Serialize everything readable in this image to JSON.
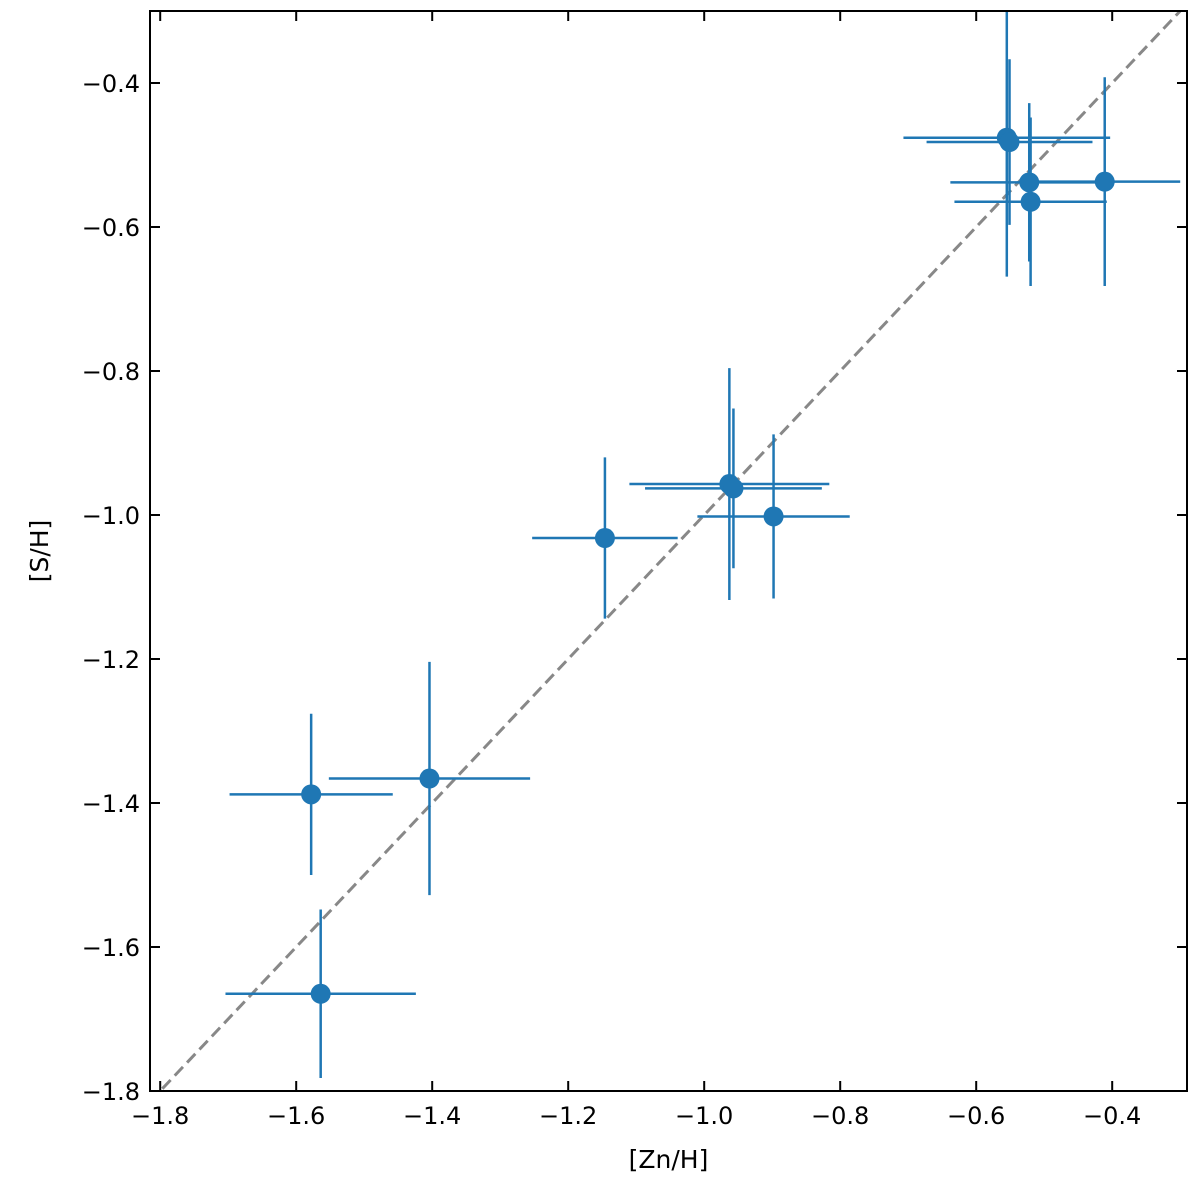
{
  "chart_data": {
    "type": "scatter",
    "title": "",
    "xlabel": "[Zn/H]",
    "ylabel": "[S/H]",
    "xlim": [
      -1.815,
      -0.29
    ],
    "ylim": [
      -1.8,
      -0.3
    ],
    "xticks": [
      -1.8,
      -1.6,
      -1.4,
      -1.2,
      -1.0,
      -0.8,
      -0.6,
      -0.4
    ],
    "yticks": [
      -1.8,
      -1.6,
      -1.4,
      -1.2,
      -1.0,
      -0.8,
      -0.6,
      -0.4
    ],
    "xtick_labels": [
      "−1.8",
      "−1.6",
      "−1.4",
      "−1.2",
      "−1.0",
      "−0.8",
      "−0.6",
      "−0.4"
    ],
    "ytick_labels": [
      "−1.8",
      "−1.6",
      "−1.4",
      "−1.2",
      "−1.0",
      "−0.8",
      "−0.6",
      "−0.4"
    ],
    "grid": false,
    "marker_color": "#1f77b4",
    "reference_line": {
      "style": "dashed",
      "color": "#888888",
      "slope": 1,
      "intercept": 0
    },
    "points": [
      {
        "x": -1.564,
        "y": -1.665,
        "xerr": 0.14,
        "yerr": 0.117
      },
      {
        "x": -1.578,
        "y": -1.388,
        "xerr": 0.12,
        "yerr": 0.112
      },
      {
        "x": -1.404,
        "y": -1.366,
        "xerr": 0.148,
        "yerr": 0.162
      },
      {
        "x": -1.146,
        "y": -1.032,
        "xerr": 0.107,
        "yerr": 0.112
      },
      {
        "x": -0.963,
        "y": -0.957,
        "xerr": 0.147,
        "yerr": 0.161
      },
      {
        "x": -0.957,
        "y": -0.963,
        "xerr": 0.13,
        "yerr": 0.111
      },
      {
        "x": -0.898,
        "y": -1.002,
        "xerr": 0.112,
        "yerr": 0.114
      },
      {
        "x": -0.555,
        "y": -0.476,
        "xerr": 0.152,
        "yerr": 0.193
      },
      {
        "x": -0.551,
        "y": -0.482,
        "xerr": 0.122,
        "yerr": 0.115
      },
      {
        "x": -0.522,
        "y": -0.538,
        "xerr": 0.116,
        "yerr": 0.11
      },
      {
        "x": -0.52,
        "y": -0.565,
        "xerr": 0.112,
        "yerr": 0.117
      },
      {
        "x": -0.411,
        "y": -0.537,
        "xerr": 0.111,
        "yerr": 0.145
      }
    ]
  }
}
